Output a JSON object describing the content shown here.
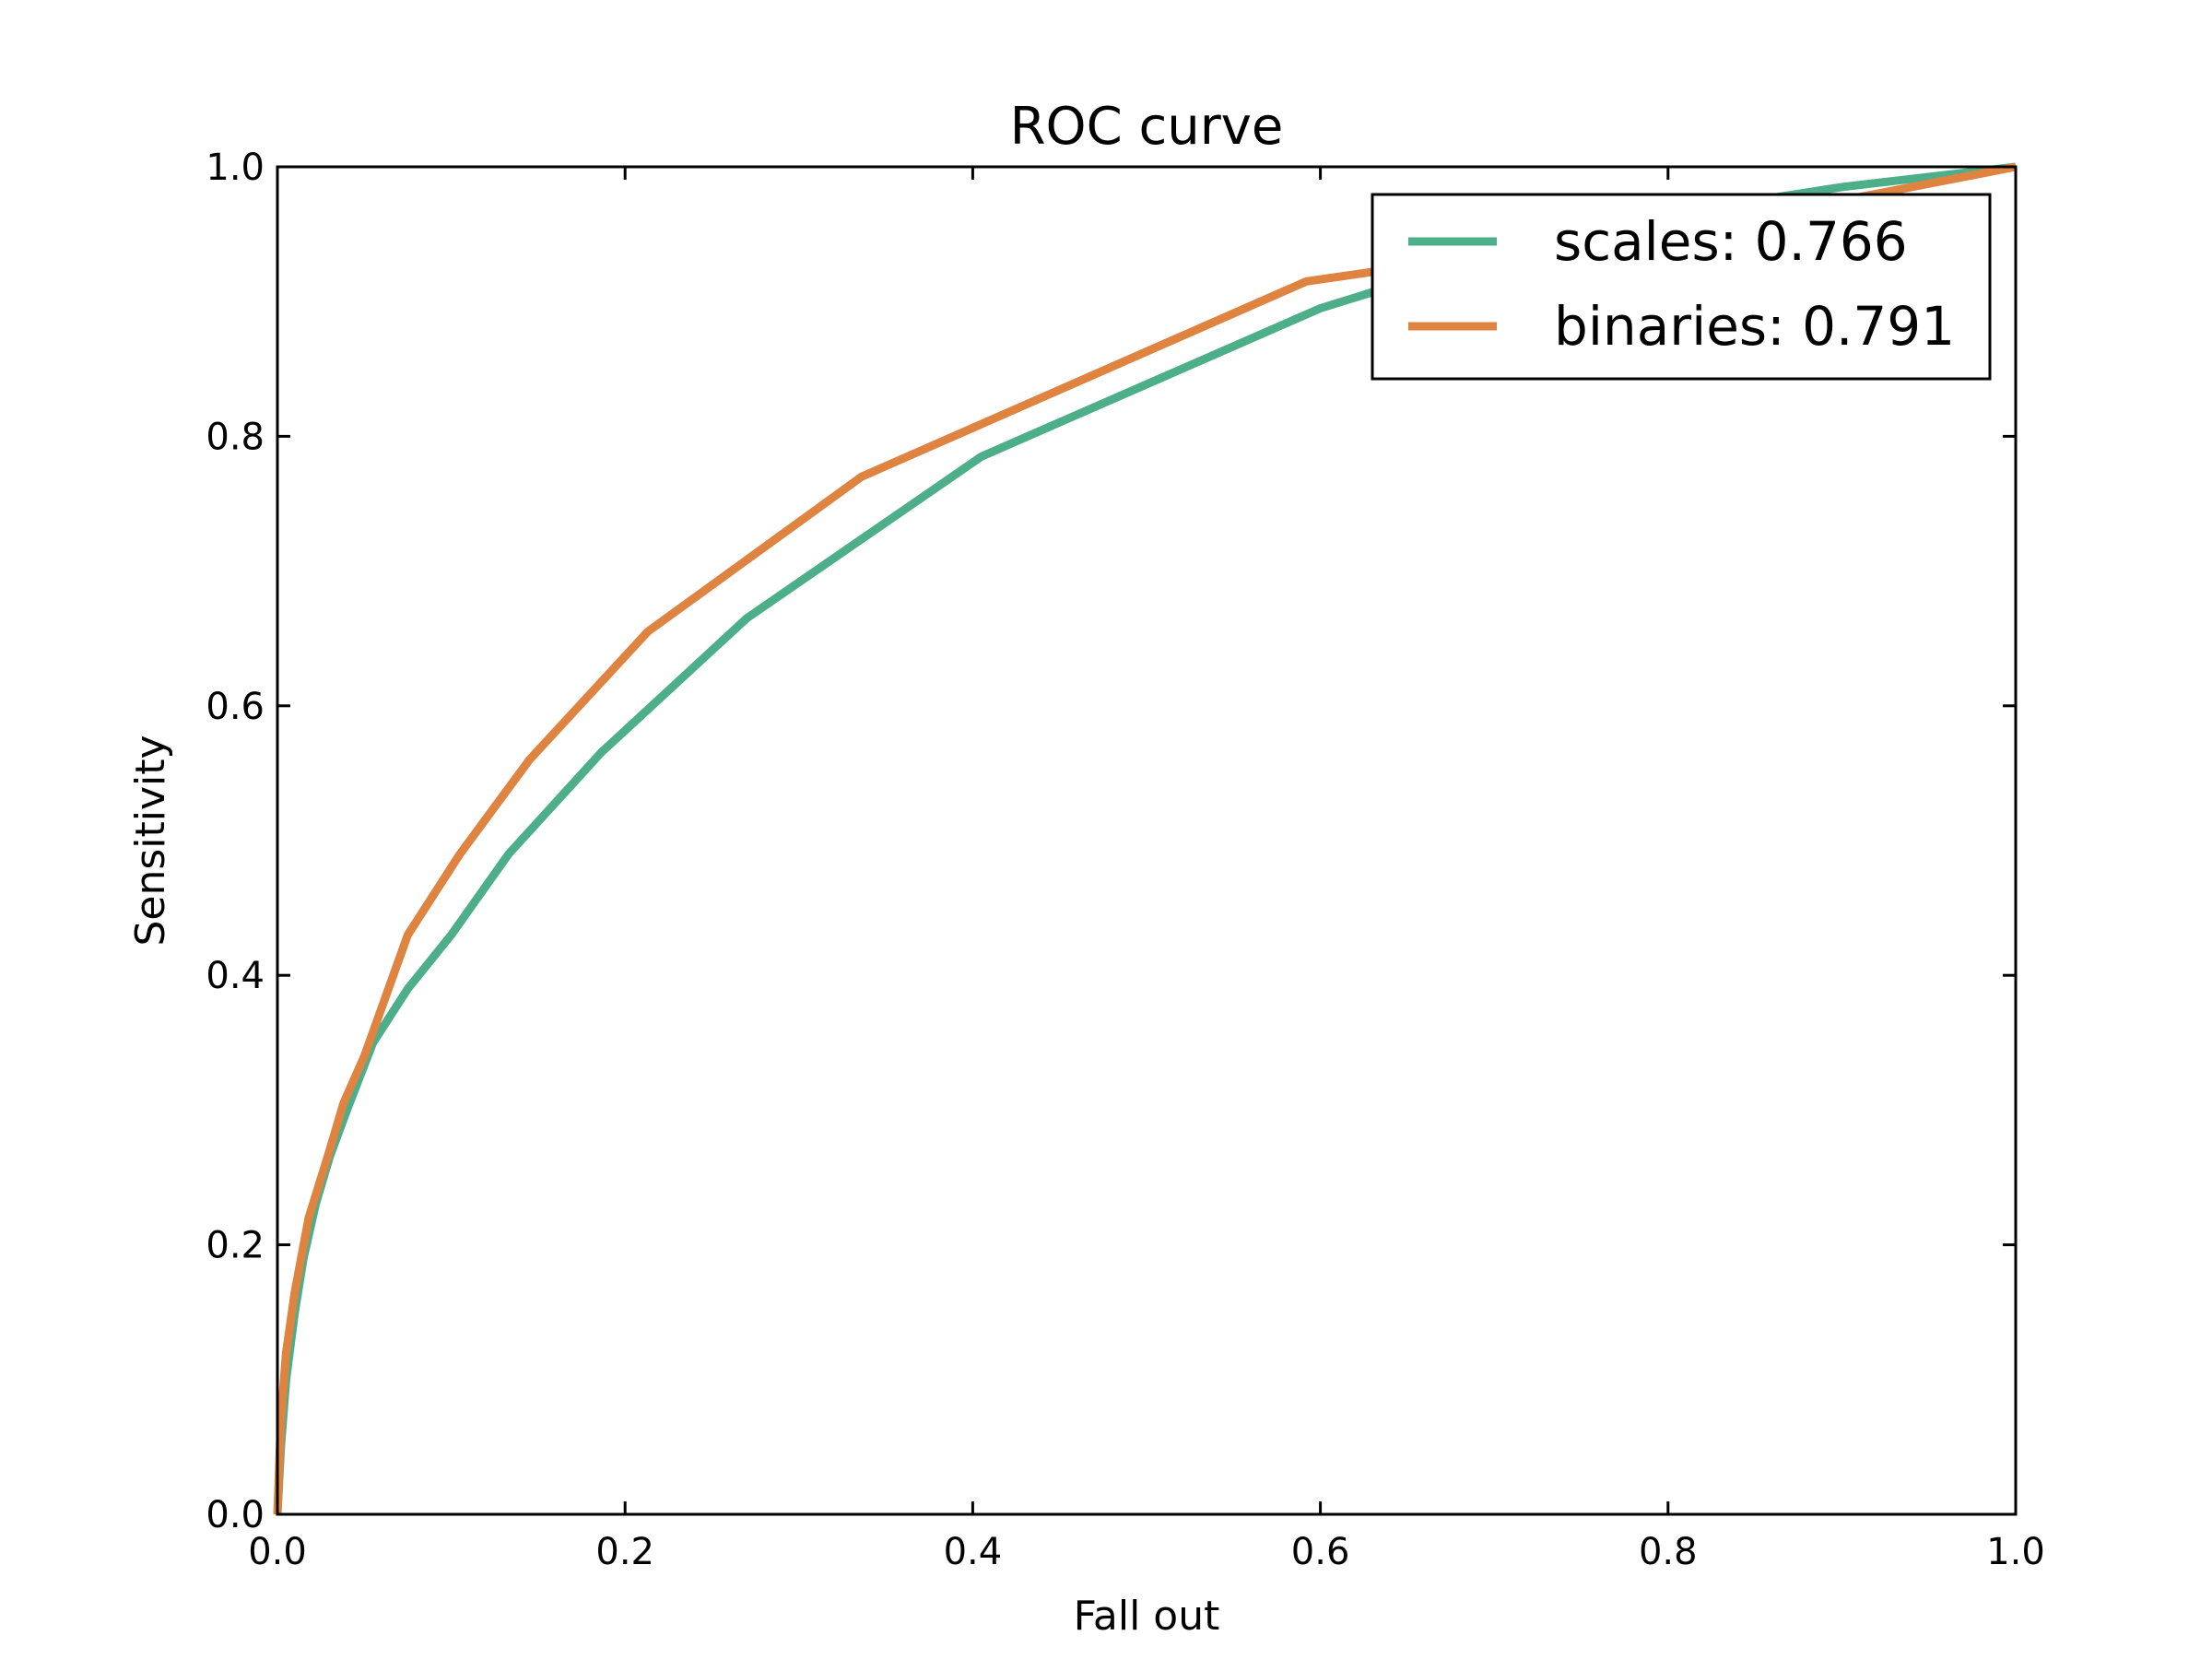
{
  "chart_data": {
    "type": "line",
    "title": "ROC curve",
    "xlabel": "Fall out",
    "ylabel": "Sensitivity",
    "xlim": [
      0.0,
      1.0
    ],
    "ylim": [
      0.0,
      1.0
    ],
    "xticks": [
      "0.0",
      "0.2",
      "0.4",
      "0.6",
      "0.8",
      "1.0"
    ],
    "yticks": [
      "0.0",
      "0.2",
      "0.4",
      "0.6",
      "0.8",
      "1.0"
    ],
    "grid": false,
    "legend": {
      "position": "top-right"
    },
    "series": [
      {
        "name": "scales: 0.766",
        "color": "#4daf8a",
        "x": [
          0.0,
          0.002,
          0.005,
          0.01,
          0.015,
          0.022,
          0.03,
          0.04,
          0.055,
          0.075,
          0.1,
          0.133,
          0.186,
          0.27,
          0.405,
          0.6,
          0.7,
          0.8,
          0.9,
          1.0
        ],
        "y": [
          0.0,
          0.05,
          0.1,
          0.15,
          0.19,
          0.23,
          0.265,
          0.3,
          0.35,
          0.39,
          0.43,
          0.49,
          0.565,
          0.665,
          0.785,
          0.895,
          0.935,
          0.965,
          0.985,
          1.0
        ]
      },
      {
        "name": "binaries: 0.791",
        "color": "#de8340",
        "x": [
          0.0,
          0.002,
          0.005,
          0.01,
          0.018,
          0.03,
          0.038,
          0.05,
          0.075,
          0.105,
          0.145,
          0.213,
          0.336,
          0.592,
          0.7,
          0.8,
          0.9,
          1.0
        ],
        "y": [
          0.0,
          0.07,
          0.12,
          0.165,
          0.22,
          0.27,
          0.305,
          0.34,
          0.43,
          0.49,
          0.56,
          0.655,
          0.77,
          0.915,
          0.935,
          0.955,
          0.975,
          1.0
        ]
      }
    ]
  }
}
